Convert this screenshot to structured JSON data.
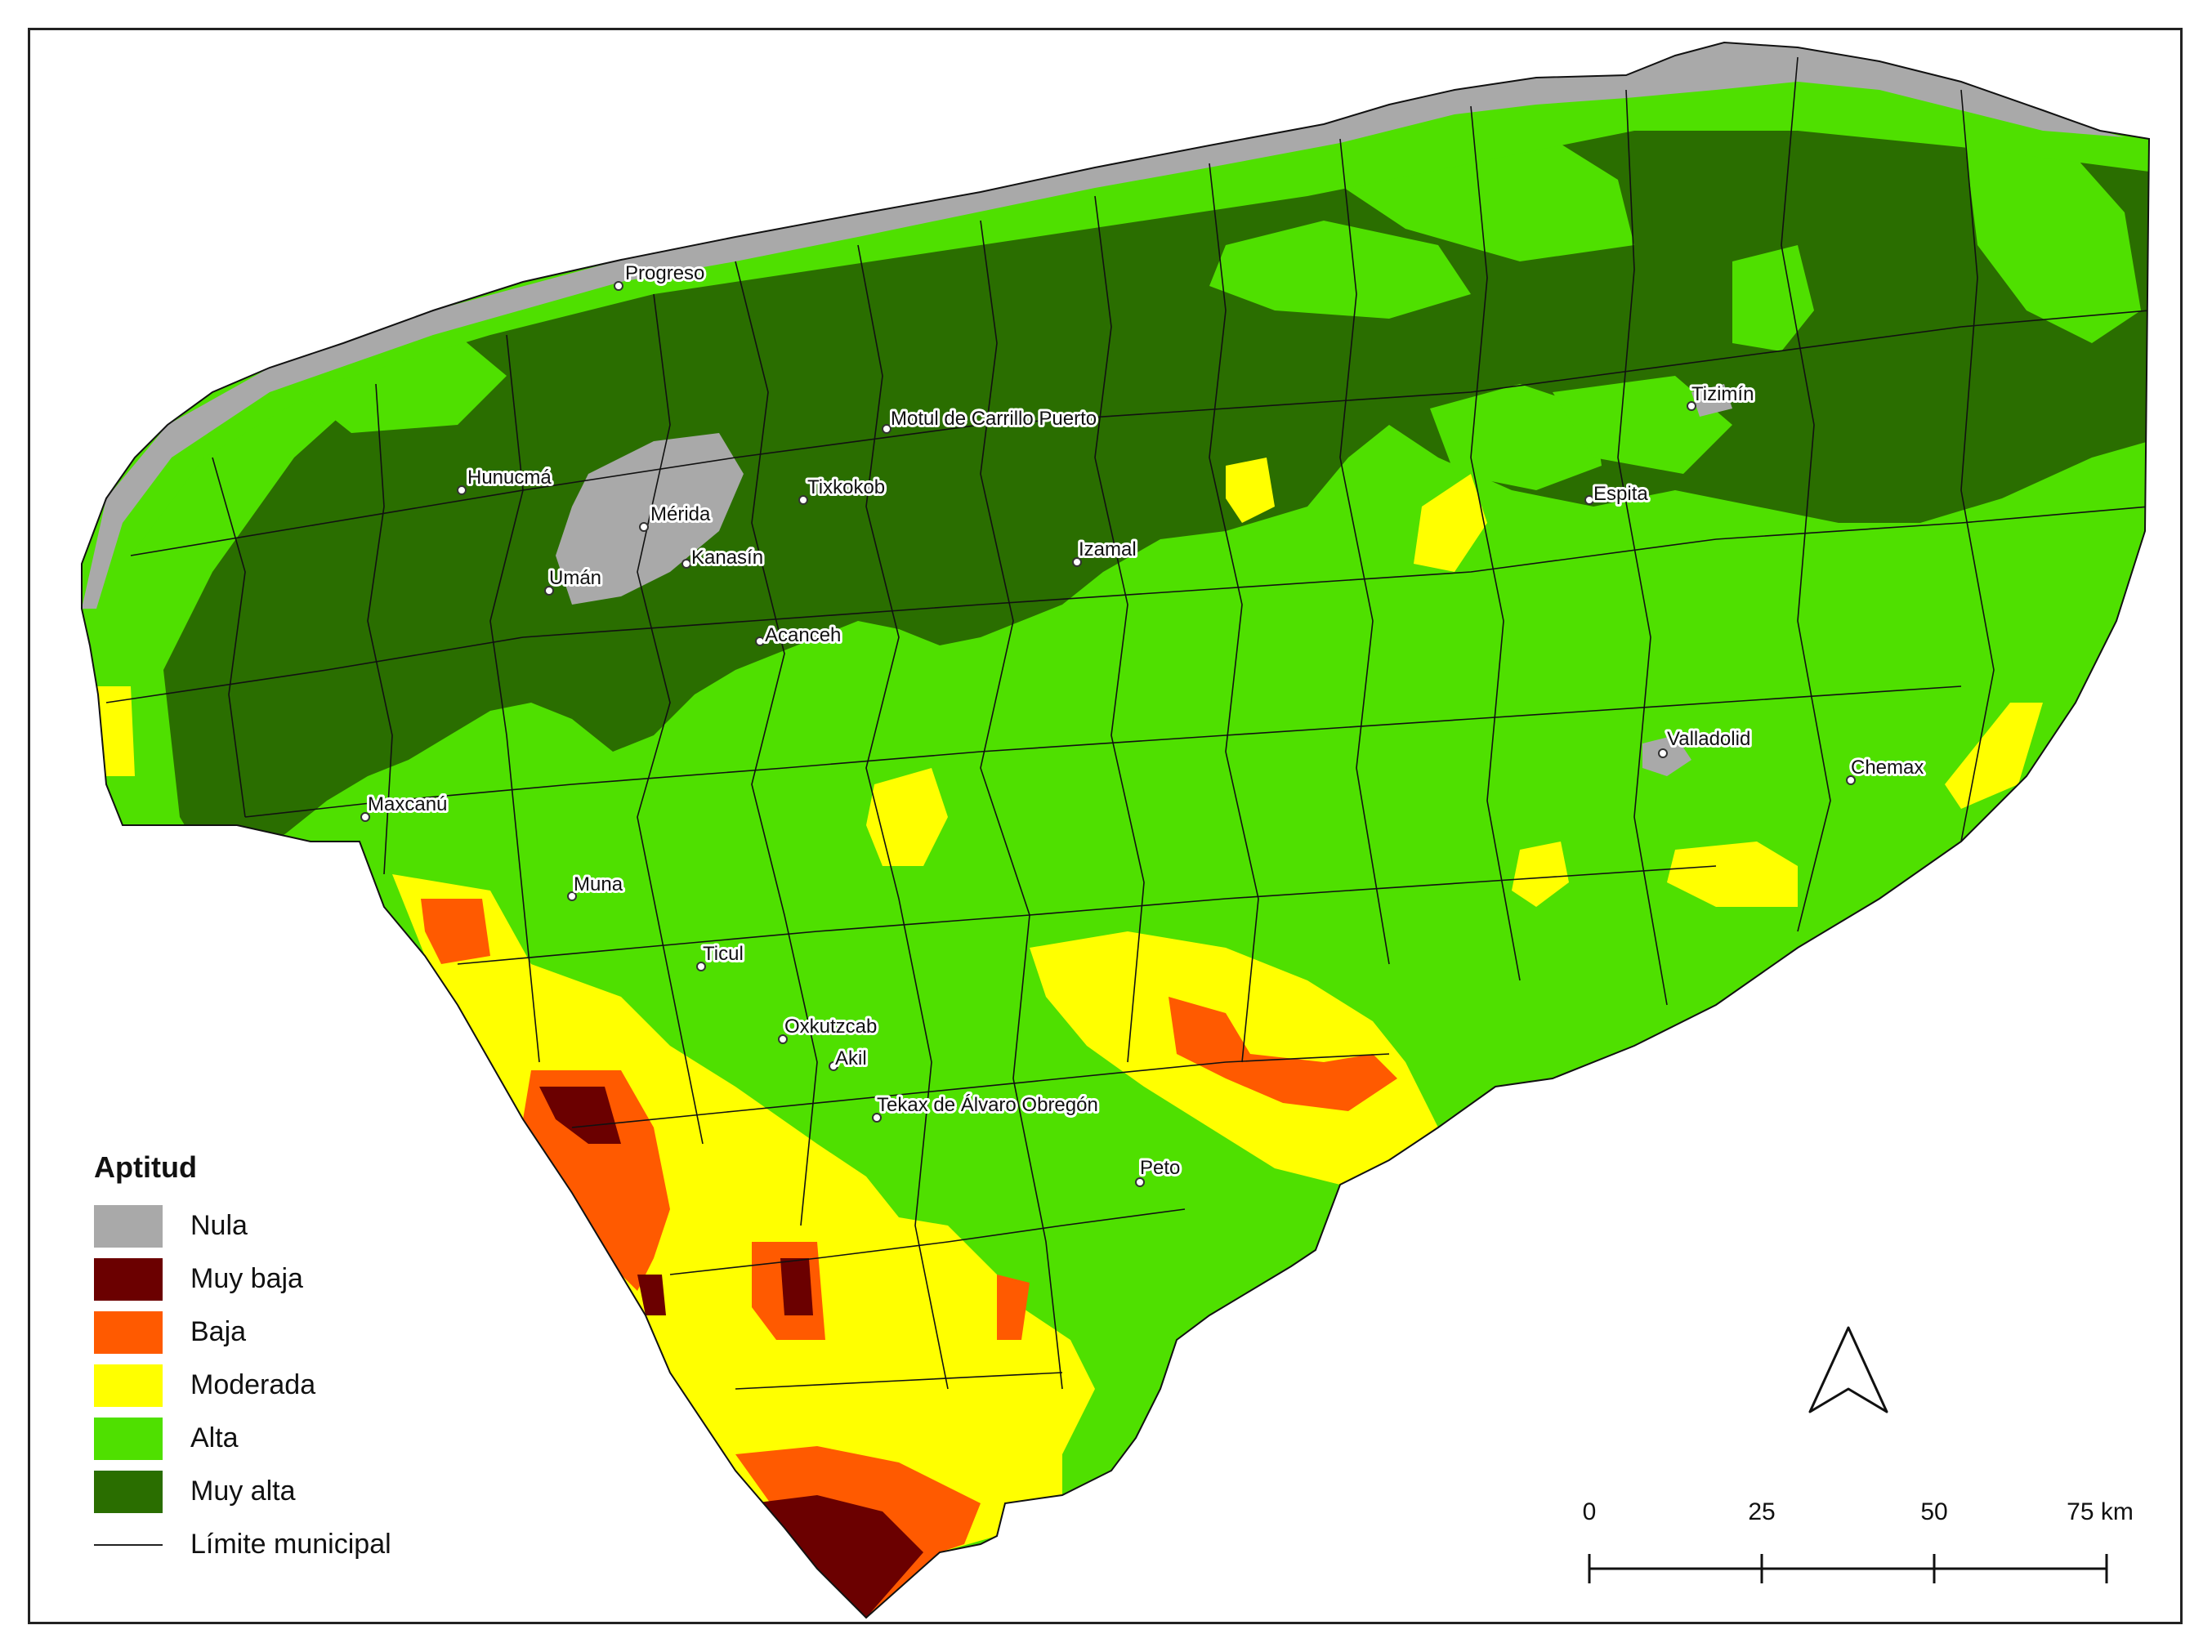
{
  "legend": {
    "title": "Aptitud",
    "items": [
      {
        "label": "Nula",
        "color": "#a9a9a9"
      },
      {
        "label": "Muy baja",
        "color": "#6b0000"
      },
      {
        "label": "Baja",
        "color": "#ff5a00"
      },
      {
        "label": "Moderada",
        "color": "#ffff00"
      },
      {
        "label": "Alta",
        "color": "#4fe000"
      },
      {
        "label": "Muy alta",
        "color": "#2a6e00"
      }
    ],
    "boundary_label": "Límite municipal"
  },
  "cities": [
    {
      "id": "progreso",
      "name": "Progreso"
    },
    {
      "id": "hunucma",
      "name": "Hunucmá"
    },
    {
      "id": "merida",
      "name": "Mérida"
    },
    {
      "id": "uman",
      "name": "Umán"
    },
    {
      "id": "kanasin",
      "name": "Kanasín"
    },
    {
      "id": "tixkokob",
      "name": "Tixkokob"
    },
    {
      "id": "motul",
      "name": "Motul de Carrillo Puerto"
    },
    {
      "id": "izamal",
      "name": "Izamal"
    },
    {
      "id": "acanceh",
      "name": "Acanceh"
    },
    {
      "id": "tizimin",
      "name": "Tizimín"
    },
    {
      "id": "espita",
      "name": "Espita"
    },
    {
      "id": "valladolid",
      "name": "Valladolid"
    },
    {
      "id": "chemax",
      "name": "Chemax"
    },
    {
      "id": "maxcanu",
      "name": "Maxcanú"
    },
    {
      "id": "muna",
      "name": "Muna"
    },
    {
      "id": "ticul",
      "name": "Ticul"
    },
    {
      "id": "oxkutzcab",
      "name": "Oxkutzcab"
    },
    {
      "id": "akil",
      "name": "Akil"
    },
    {
      "id": "tekax",
      "name": "Tekax de Álvaro Obregón"
    },
    {
      "id": "peto",
      "name": "Peto"
    }
  ],
  "scale": {
    "ticks": [
      "0",
      "25",
      "50",
      "75 km"
    ]
  },
  "north_arrow": "north-arrow-icon"
}
